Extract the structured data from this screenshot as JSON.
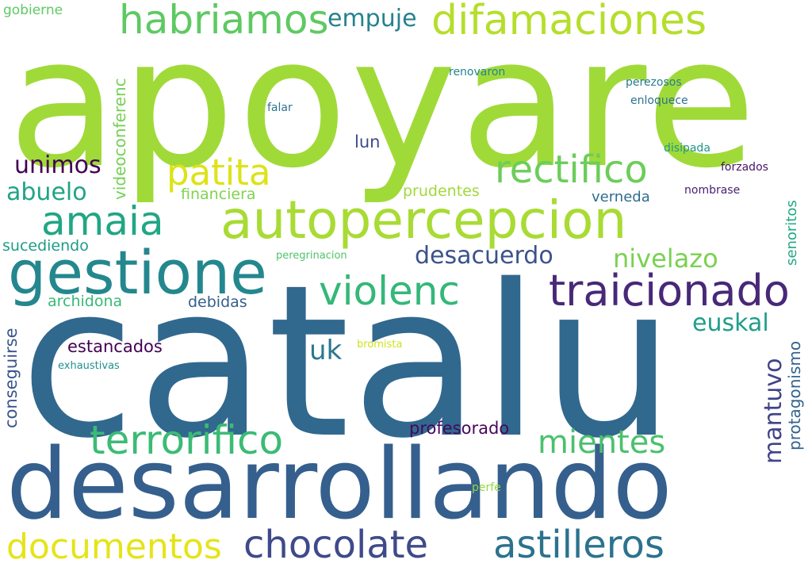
{
  "words": [
    {
      "text": "apoyare",
      "color": "#a0da39"
    },
    {
      "text": "catalu",
      "color": "#31688e"
    },
    {
      "text": "desarrollando",
      "color": "#355f8d"
    },
    {
      "text": "autopercepcion",
      "color": "#a8db34"
    },
    {
      "text": "gestione",
      "color": "#24878e"
    },
    {
      "text": "traicionado",
      "color": "#482878"
    },
    {
      "text": "difamaciones",
      "color": "#b5de2b"
    },
    {
      "text": "habriamos",
      "color": "#5ec962"
    },
    {
      "text": "rectifico",
      "color": "#6ccd5a"
    },
    {
      "text": "violenc",
      "color": "#35b779"
    },
    {
      "text": "terrorifico",
      "color": "#3bbb75"
    },
    {
      "text": "chocolate",
      "color": "#3e4a89"
    },
    {
      "text": "astilleros",
      "color": "#2c728e"
    },
    {
      "text": "documentos",
      "color": "#e5e419"
    },
    {
      "text": "amaia",
      "color": "#21a685"
    },
    {
      "text": "patita",
      "color": "#dde318"
    },
    {
      "text": "mientes",
      "color": "#4ac16d"
    },
    {
      "text": "mantuvo",
      "color": "#414487"
    },
    {
      "text": "nivelazo",
      "color": "#7ad151"
    },
    {
      "text": "desacuerdo",
      "color": "#3b528b"
    },
    {
      "text": "empuje",
      "color": "#26828e"
    },
    {
      "text": "unimos",
      "color": "#440154"
    },
    {
      "text": "abuelo",
      "color": "#20a486"
    },
    {
      "text": "euskal",
      "color": "#1f9e89"
    },
    {
      "text": "uk",
      "color": "#2a788e"
    },
    {
      "text": "videoconferenc",
      "color": "#75d054"
    },
    {
      "text": "profesorado",
      "color": "#46085c"
    },
    {
      "text": "estancados",
      "color": "#440154"
    },
    {
      "text": "protagonismo",
      "color": "#33638d"
    },
    {
      "text": "conseguirse",
      "color": "#3a548c"
    },
    {
      "text": "senoritos",
      "color": "#22a884"
    },
    {
      "text": "lun",
      "color": "#3e4989"
    },
    {
      "text": "prudentes",
      "color": "#9fda3a"
    },
    {
      "text": "financiera",
      "color": "#7fd34e"
    },
    {
      "text": "verneda",
      "color": "#2f6c8e"
    },
    {
      "text": "sucediendo",
      "color": "#1e9c89"
    },
    {
      "text": "archidona",
      "color": "#38b977"
    },
    {
      "text": "debidas",
      "color": "#355e8d"
    },
    {
      "text": "gobierne",
      "color": "#5ec962"
    },
    {
      "text": "renovaron",
      "color": "#25848e"
    },
    {
      "text": "perezosos",
      "color": "#287c8e"
    },
    {
      "text": "enloquece",
      "color": "#2d708e"
    },
    {
      "text": "falar",
      "color": "#2c738e"
    },
    {
      "text": "disipada",
      "color": "#1f968b"
    },
    {
      "text": "forzados",
      "color": "#481467"
    },
    {
      "text": "nombrase",
      "color": "#482173"
    },
    {
      "text": "peregrinacion",
      "color": "#50c46a"
    },
    {
      "text": "bromista",
      "color": "#d0e11c"
    },
    {
      "text": "exhaustivas",
      "color": "#21918c"
    },
    {
      "text": "perfe",
      "color": "#95d840"
    }
  ]
}
